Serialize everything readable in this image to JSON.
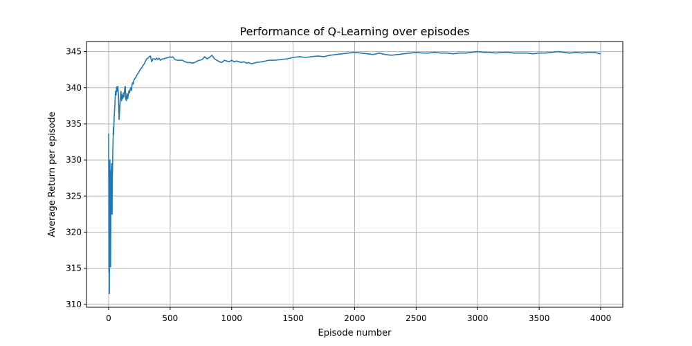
{
  "chart_data": {
    "type": "line",
    "title": "Performance of Q-Learning over episodes",
    "xlabel": "Episode number",
    "ylabel": "Average Return per episode",
    "xlim": [
      -180,
      4180
    ],
    "ylim": [
      309.6,
      346.4
    ],
    "x_ticks": [
      0,
      500,
      1000,
      1500,
      2000,
      2500,
      3000,
      3500,
      4000
    ],
    "x_tick_labels": [
      "0",
      "500",
      "1000",
      "1500",
      "2000",
      "2500",
      "3000",
      "3500",
      "4000"
    ],
    "y_ticks": [
      310,
      315,
      320,
      325,
      330,
      335,
      340,
      345
    ],
    "y_tick_labels": [
      "310",
      "315",
      "320",
      "325",
      "330",
      "335",
      "340",
      "345"
    ],
    "grid": true,
    "series": [
      {
        "color": "#1f77b4",
        "x": [
          0,
          2,
          4,
          6,
          8,
          10,
          12,
          14,
          16,
          18,
          20,
          22,
          24,
          26,
          28,
          30,
          32,
          34,
          36,
          38,
          40,
          45,
          50,
          55,
          60,
          65,
          70,
          75,
          80,
          85,
          90,
          95,
          100,
          105,
          110,
          115,
          120,
          125,
          130,
          135,
          140,
          145,
          150,
          155,
          160,
          165,
          170,
          175,
          180,
          185,
          190,
          195,
          200,
          205,
          210,
          220,
          230,
          240,
          250,
          260,
          270,
          280,
          290,
          300,
          310,
          320,
          330,
          340,
          350,
          360,
          370,
          380,
          390,
          400,
          410,
          420,
          430,
          440,
          450,
          460,
          470,
          480,
          490,
          500,
          510,
          520,
          540,
          560,
          580,
          600,
          620,
          640,
          660,
          680,
          700,
          720,
          740,
          760,
          780,
          800,
          820,
          840,
          860,
          880,
          900,
          920,
          940,
          960,
          980,
          1000,
          1020,
          1040,
          1060,
          1080,
          1100,
          1120,
          1140,
          1160,
          1180,
          1200,
          1250,
          1300,
          1350,
          1400,
          1450,
          1500,
          1550,
          1600,
          1650,
          1700,
          1750,
          1800,
          1850,
          1900,
          1950,
          2000,
          2050,
          2100,
          2150,
          2200,
          2250,
          2300,
          2350,
          2400,
          2450,
          2500,
          2550,
          2600,
          2650,
          2700,
          2750,
          2800,
          2850,
          2900,
          2950,
          3000,
          3050,
          3100,
          3150,
          3200,
          3250,
          3300,
          3350,
          3400,
          3450,
          3500,
          3550,
          3600,
          3650,
          3700,
          3750,
          3800,
          3850,
          3900,
          3950,
          3995
        ],
        "y": [
          333.6,
          314.5,
          329.5,
          311.5,
          326.0,
          330.0,
          321.0,
          328.5,
          315.2,
          325.5,
          322.5,
          329.5,
          326.0,
          328.5,
          322.5,
          327.5,
          329.0,
          331.0,
          332.5,
          334.5,
          333.5,
          336.0,
          337.5,
          339.5,
          339.0,
          340.1,
          339.5,
          340.2,
          339.0,
          335.6,
          337.0,
          338.5,
          339.5,
          338.2,
          339.0,
          338.5,
          339.3,
          338.7,
          339.8,
          340.2,
          338.4,
          338.2,
          339.2,
          338.5,
          339.0,
          339.6,
          339.3,
          339.8,
          340.0,
          339.6,
          340.4,
          340.7,
          340.5,
          341.0,
          341.2,
          341.4,
          341.8,
          342.0,
          342.3,
          342.6,
          342.8,
          343.1,
          343.3,
          343.7,
          344.0,
          344.1,
          344.3,
          344.4,
          343.6,
          344.0,
          344.0,
          343.9,
          344.1,
          343.9,
          344.1,
          343.8,
          343.9,
          344.0,
          344.0,
          344.1,
          344.1,
          344.2,
          344.2,
          344.3,
          344.2,
          344.3,
          343.9,
          343.8,
          343.8,
          343.8,
          343.6,
          343.5,
          343.5,
          343.4,
          343.5,
          343.7,
          343.8,
          343.9,
          344.3,
          344.0,
          344.2,
          344.5,
          344.0,
          343.8,
          343.6,
          343.5,
          343.8,
          343.7,
          343.6,
          343.8,
          343.6,
          343.7,
          343.6,
          343.5,
          343.6,
          343.4,
          343.5,
          343.3,
          343.4,
          343.5,
          343.6,
          343.8,
          343.8,
          343.9,
          344.0,
          344.2,
          344.3,
          344.2,
          344.3,
          344.4,
          344.3,
          344.5,
          344.6,
          344.7,
          344.8,
          344.9,
          344.8,
          344.7,
          344.6,
          344.8,
          344.6,
          344.5,
          344.6,
          344.7,
          344.8,
          344.9,
          344.8,
          344.8,
          344.9,
          344.8,
          344.8,
          344.7,
          344.8,
          344.8,
          344.9,
          345.0,
          344.9,
          344.9,
          344.8,
          344.9,
          344.9,
          344.8,
          344.8,
          344.8,
          344.7,
          344.8,
          344.8,
          344.9,
          345.0,
          344.9,
          344.8,
          344.9,
          344.8,
          344.9,
          344.9,
          344.7
        ]
      }
    ]
  }
}
